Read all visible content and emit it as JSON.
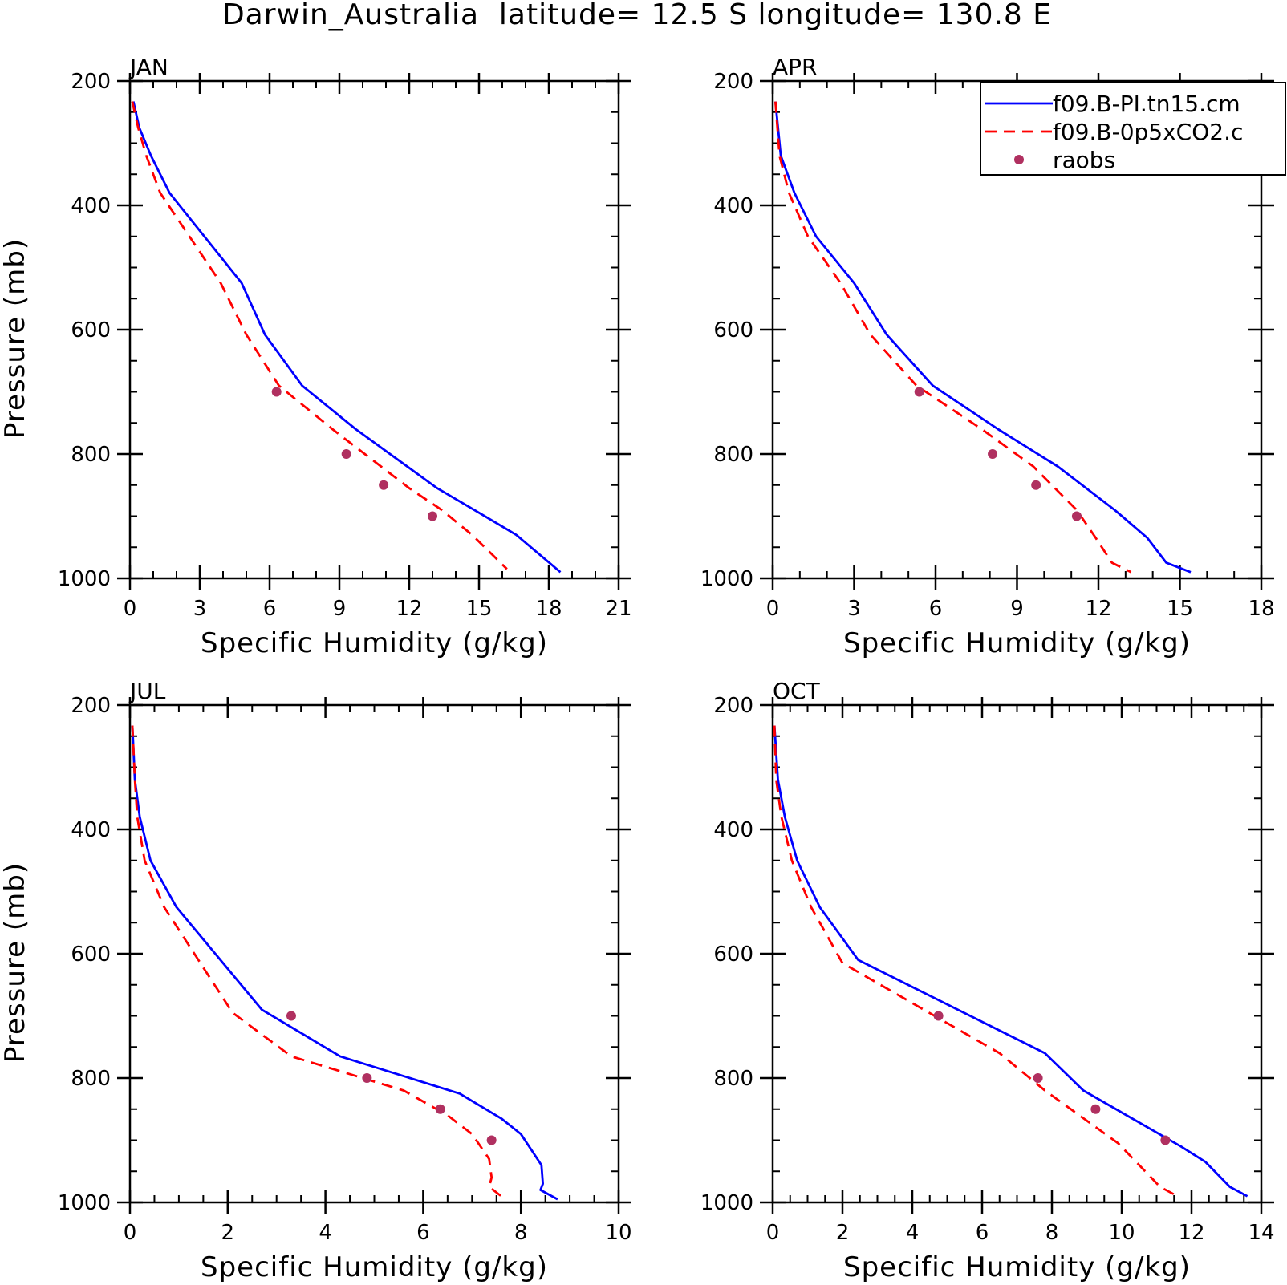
{
  "figure": {
    "title": "Darwin_Australia  latitude= 12.5 S longitude= 130.8 E"
  },
  "colors": {
    "model_pi": "#0000ff",
    "model_0p5xco2": "#ff0000",
    "raobs": "#b03060",
    "axis": "#000000"
  },
  "legend": {
    "entries": [
      {
        "label": "f09.B-PI.tn15.cm",
        "style": "solid",
        "color": "#0000ff"
      },
      {
        "label": "f09.B-0p5xCO2.c",
        "style": "dashed",
        "color": "#ff0000"
      },
      {
        "label": "raobs",
        "style": "marker",
        "color": "#b03060"
      }
    ]
  },
  "chart_data": [
    {
      "type": "line",
      "title": "JAN",
      "xlabel": "Specific Humidity (g/kg)",
      "ylabel": "Pressure (mb)",
      "xlim": [
        0,
        21
      ],
      "ylim": [
        200,
        1000
      ],
      "y_inverted": true,
      "xticks": [
        0,
        3,
        6,
        9,
        12,
        15,
        18,
        21
      ],
      "yticks": [
        200,
        400,
        600,
        800,
        1000
      ],
      "series": [
        {
          "name": "f09.B-PI.tn15.cm",
          "x": [
            0.15,
            0.4,
            0.9,
            1.7,
            4.8,
            5.8,
            7.4,
            9.7,
            13.2,
            14.8,
            16.6,
            18.5
          ],
          "y": [
            233,
            275,
            320,
            380,
            525,
            608,
            690,
            760,
            855,
            890,
            930,
            990
          ]
        },
        {
          "name": "f09.B-0p5xCO2.c",
          "x": [
            0.1,
            0.35,
            0.7,
            1.3,
            3.9,
            5.0,
            6.4,
            8.7,
            12.0,
            13.4,
            14.7,
            16.2
          ],
          "y": [
            233,
            275,
            320,
            380,
            525,
            608,
            690,
            760,
            855,
            890,
            930,
            985
          ]
        },
        {
          "name": "raobs",
          "x": [
            6.3,
            9.3,
            10.9,
            13.0
          ],
          "y": [
            700,
            800,
            850,
            900
          ]
        }
      ]
    },
    {
      "type": "line",
      "title": "APR",
      "xlabel": "Specific Humidity (g/kg)",
      "ylabel": "",
      "xlim": [
        0,
        18
      ],
      "ylim": [
        200,
        1000
      ],
      "y_inverted": true,
      "xticks": [
        0,
        3,
        6,
        9,
        12,
        15,
        18
      ],
      "yticks": [
        200,
        400,
        600,
        800,
        1000
      ],
      "series": [
        {
          "name": "f09.B-PI.tn15.cm",
          "x": [
            0.1,
            0.3,
            0.8,
            1.6,
            3.0,
            4.2,
            5.9,
            8.3,
            10.5,
            12.6,
            13.8,
            14.5,
            15.4
          ],
          "y": [
            233,
            320,
            380,
            450,
            525,
            608,
            690,
            760,
            820,
            890,
            935,
            975,
            990
          ]
        },
        {
          "name": "f09.B-0p5xCO2.c",
          "x": [
            0.1,
            0.25,
            0.6,
            1.3,
            2.5,
            3.6,
            5.3,
            7.7,
            9.6,
            11.2,
            11.9,
            12.5,
            13.2
          ],
          "y": [
            233,
            320,
            380,
            450,
            525,
            608,
            690,
            760,
            820,
            890,
            935,
            975,
            990
          ]
        },
        {
          "name": "raobs",
          "x": [
            5.4,
            8.1,
            9.7,
            11.2
          ],
          "y": [
            700,
            800,
            850,
            900
          ]
        }
      ]
    },
    {
      "type": "line",
      "title": "JUL",
      "xlabel": "Specific Humidity (g/kg)",
      "ylabel": "Pressure (mb)",
      "xlim": [
        0,
        10
      ],
      "ylim": [
        200,
        1000
      ],
      "y_inverted": true,
      "xticks": [
        0,
        2,
        4,
        6,
        8,
        10
      ],
      "yticks": [
        200,
        400,
        600,
        800,
        1000
      ],
      "series": [
        {
          "name": "f09.B-PI.tn15.cm",
          "x": [
            0.05,
            0.1,
            0.2,
            0.42,
            0.95,
            2.7,
            4.3,
            6.75,
            7.6,
            8.0,
            8.42,
            8.45,
            8.4,
            8.75
          ],
          "y": [
            233,
            320,
            380,
            450,
            525,
            690,
            765,
            825,
            865,
            890,
            940,
            970,
            980,
            995
          ]
        },
        {
          "name": "f09.B-0p5xCO2.c",
          "x": [
            0.05,
            0.1,
            0.15,
            0.3,
            0.7,
            2.1,
            3.3,
            5.6,
            6.5,
            7.0,
            7.35,
            7.4,
            7.35,
            7.6
          ],
          "y": [
            233,
            320,
            380,
            450,
            525,
            695,
            765,
            820,
            860,
            890,
            930,
            960,
            975,
            990
          ]
        },
        {
          "name": "raobs",
          "x": [
            3.3,
            4.85,
            6.35,
            7.4
          ],
          "y": [
            700,
            800,
            850,
            900
          ]
        }
      ]
    },
    {
      "type": "line",
      "title": "OCT",
      "xlabel": "Specific Humidity (g/kg)",
      "ylabel": "",
      "xlim": [
        0,
        14
      ],
      "ylim": [
        200,
        1000
      ],
      "y_inverted": true,
      "xticks": [
        0,
        2,
        4,
        6,
        8,
        10,
        12,
        14
      ],
      "yticks": [
        200,
        400,
        600,
        800,
        1000
      ],
      "series": [
        {
          "name": "f09.B-PI.tn15.cm",
          "x": [
            0.05,
            0.15,
            0.35,
            0.7,
            1.35,
            2.45,
            7.8,
            8.9,
            11.7,
            12.4,
            13.1,
            13.6
          ],
          "y": [
            233,
            320,
            380,
            450,
            525,
            610,
            760,
            820,
            910,
            935,
            975,
            990
          ]
        },
        {
          "name": "f09.B-0p5xCO2.c",
          "x": [
            0.05,
            0.1,
            0.25,
            0.55,
            1.1,
            2.0,
            6.5,
            7.8,
            9.9,
            10.5,
            11.1,
            11.6
          ],
          "y": [
            233,
            320,
            380,
            450,
            525,
            615,
            760,
            820,
            905,
            940,
            975,
            990
          ]
        },
        {
          "name": "raobs",
          "x": [
            4.75,
            7.6,
            9.25,
            11.25
          ],
          "y": [
            700,
            800,
            850,
            900
          ]
        }
      ]
    }
  ]
}
